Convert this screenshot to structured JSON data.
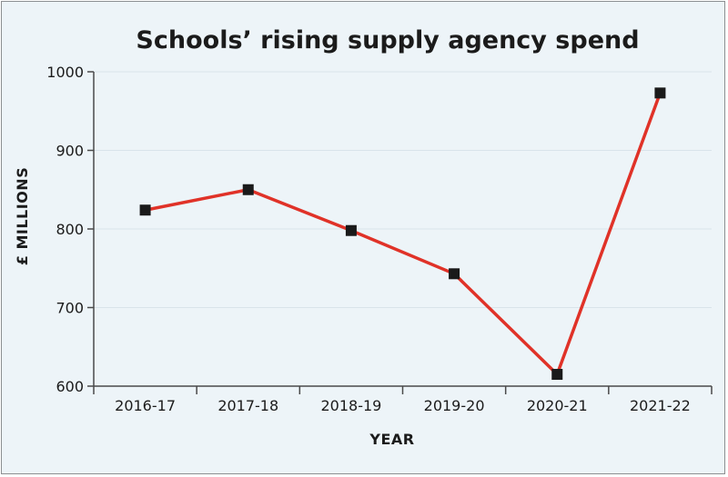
{
  "chart_data": {
    "type": "line",
    "title": "Schools’ rising supply agency spend",
    "xlabel": "YEAR",
    "ylabel": "£ MILLIONS",
    "categories": [
      "2016-17",
      "2017-18",
      "2018-19",
      "2019-20",
      "2020-21",
      "2021-22"
    ],
    "series": [
      {
        "values": [
          824,
          850,
          798,
          743,
          615,
          973
        ]
      }
    ],
    "ylim": [
      600,
      1000
    ],
    "yticks": [
      "600",
      "700",
      "800",
      "900",
      "1000"
    ],
    "grid": true,
    "legend": "none",
    "colors": {
      "line": "#e03228",
      "marker": "#1a1a1a",
      "background": "#edf4f8",
      "grid": "#d9e3ea",
      "axis": "#4a4a4a"
    }
  }
}
